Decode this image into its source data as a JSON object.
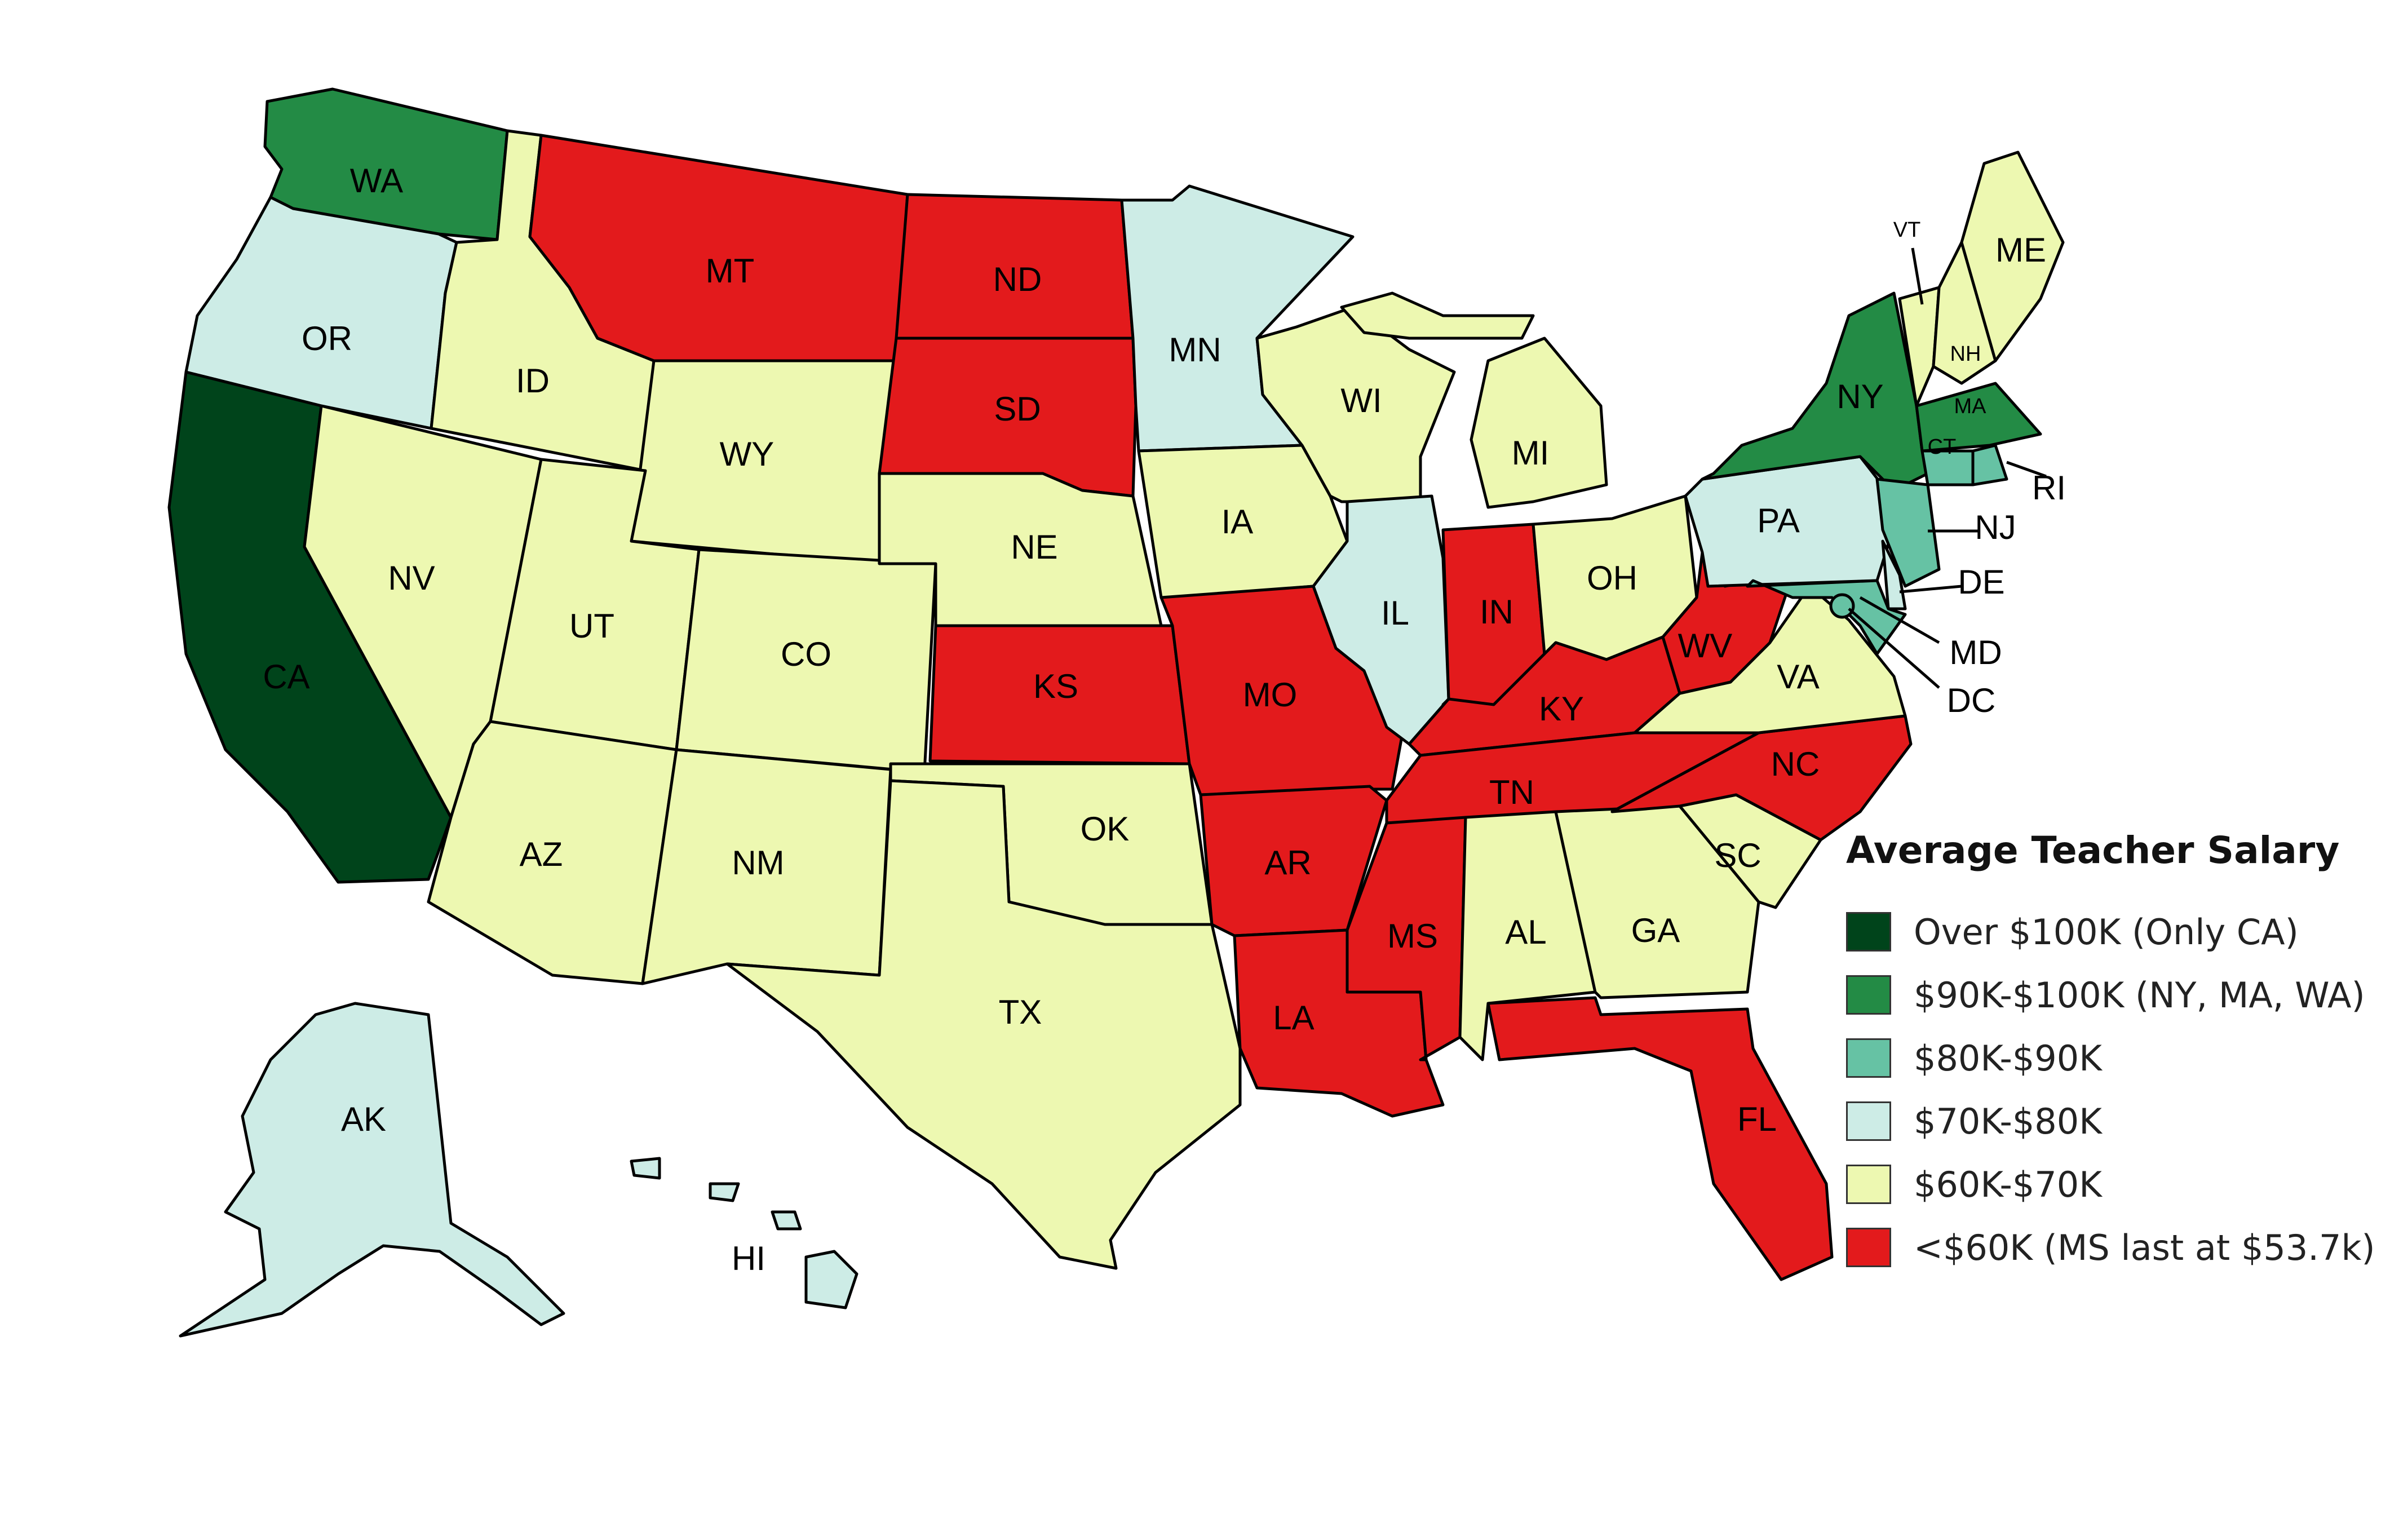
{
  "title": "Average Teacher Salary",
  "legend": [
    {
      "key": "over100",
      "label": "Over $100K (Only CA)",
      "color": "#00441b"
    },
    {
      "key": "k90_100",
      "label": "$90K-$100K (NY, MA, WA)",
      "color": "#238b45"
    },
    {
      "key": "k80_90",
      "label": "$80K-$90K",
      "color": "#66c2a4"
    },
    {
      "key": "k70_80",
      "label": "$70K-$80K",
      "color": "#cdece6"
    },
    {
      "key": "k60_70",
      "label": "$60K-$70K",
      "color": "#edf8b1"
    },
    {
      "key": "under60",
      "label": "<$60K (MS last at $53.7k)",
      "color": "#e31a1c"
    }
  ],
  "states": [
    {
      "abbr": "WA",
      "tier": "k90_100"
    },
    {
      "abbr": "OR",
      "tier": "k70_80"
    },
    {
      "abbr": "CA",
      "tier": "over100"
    },
    {
      "abbr": "ID",
      "tier": "k60_70"
    },
    {
      "abbr": "NV",
      "tier": "k60_70"
    },
    {
      "abbr": "MT",
      "tier": "under60"
    },
    {
      "abbr": "WY",
      "tier": "k60_70"
    },
    {
      "abbr": "UT",
      "tier": "k60_70"
    },
    {
      "abbr": "AZ",
      "tier": "k60_70"
    },
    {
      "abbr": "CO",
      "tier": "k60_70"
    },
    {
      "abbr": "NM",
      "tier": "k60_70"
    },
    {
      "abbr": "ND",
      "tier": "under60"
    },
    {
      "abbr": "SD",
      "tier": "under60"
    },
    {
      "abbr": "NE",
      "tier": "k60_70"
    },
    {
      "abbr": "KS",
      "tier": "under60"
    },
    {
      "abbr": "OK",
      "tier": "k60_70"
    },
    {
      "abbr": "TX",
      "tier": "k60_70"
    },
    {
      "abbr": "MN",
      "tier": "k70_80"
    },
    {
      "abbr": "IA",
      "tier": "k60_70"
    },
    {
      "abbr": "MO",
      "tier": "under60"
    },
    {
      "abbr": "AR",
      "tier": "under60"
    },
    {
      "abbr": "LA",
      "tier": "under60"
    },
    {
      "abbr": "WI",
      "tier": "k60_70"
    },
    {
      "abbr": "IL",
      "tier": "k70_80"
    },
    {
      "abbr": "MI",
      "tier": "k60_70"
    },
    {
      "abbr": "IN",
      "tier": "under60"
    },
    {
      "abbr": "OH",
      "tier": "k60_70"
    },
    {
      "abbr": "KY",
      "tier": "under60"
    },
    {
      "abbr": "TN",
      "tier": "under60"
    },
    {
      "abbr": "MS",
      "tier": "under60"
    },
    {
      "abbr": "AL",
      "tier": "k60_70"
    },
    {
      "abbr": "GA",
      "tier": "k60_70"
    },
    {
      "abbr": "FL",
      "tier": "under60"
    },
    {
      "abbr": "SC",
      "tier": "k60_70"
    },
    {
      "abbr": "NC",
      "tier": "under60"
    },
    {
      "abbr": "VA",
      "tier": "k60_70"
    },
    {
      "abbr": "WV",
      "tier": "under60"
    },
    {
      "abbr": "PA",
      "tier": "k70_80"
    },
    {
      "abbr": "NY",
      "tier": "k90_100"
    },
    {
      "abbr": "VT",
      "tier": "k60_70"
    },
    {
      "abbr": "NH",
      "tier": "k60_70"
    },
    {
      "abbr": "ME",
      "tier": "k60_70"
    },
    {
      "abbr": "MA",
      "tier": "k90_100"
    },
    {
      "abbr": "CT",
      "tier": "k80_90"
    },
    {
      "abbr": "RI",
      "tier": "k80_90"
    },
    {
      "abbr": "NJ",
      "tier": "k80_90"
    },
    {
      "abbr": "DE",
      "tier": "k70_80"
    },
    {
      "abbr": "MD",
      "tier": "k80_90"
    },
    {
      "abbr": "DC",
      "tier": "k80_90"
    },
    {
      "abbr": "AK",
      "tier": "k70_80"
    },
    {
      "abbr": "HI",
      "tier": "k70_80"
    }
  ]
}
